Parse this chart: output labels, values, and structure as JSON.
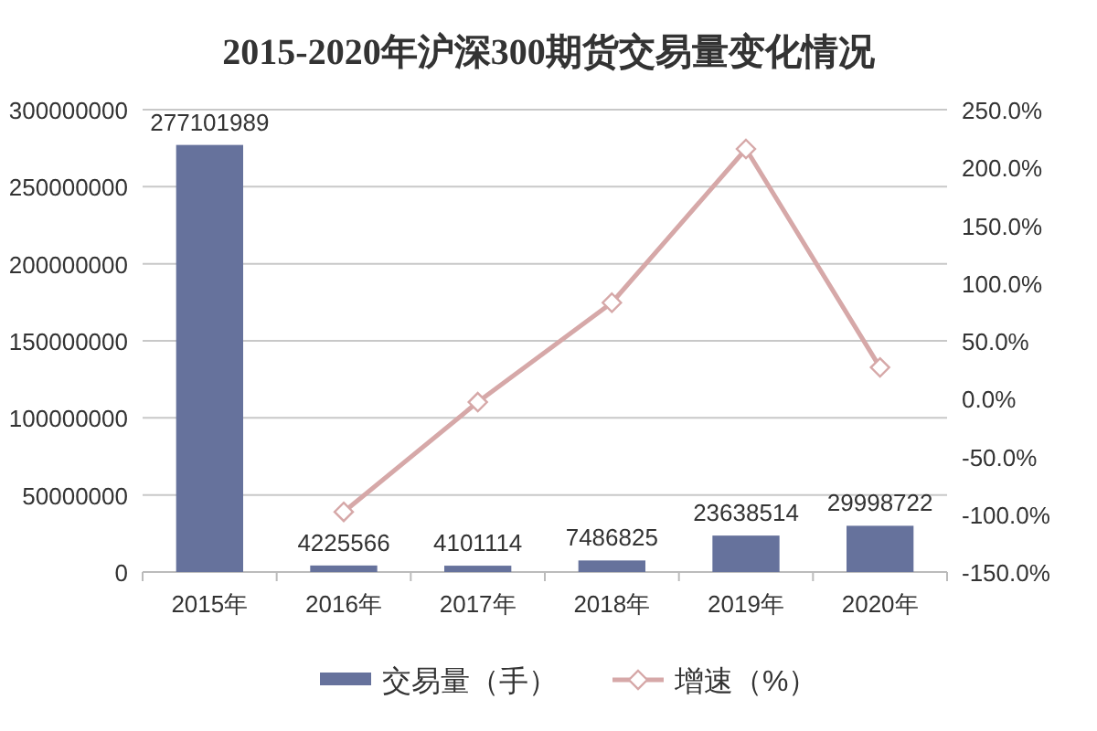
{
  "chart_data": {
    "type": "bar",
    "title": "2015-2020年沪深300期货交易量变化情况",
    "categories": [
      "2015年",
      "2016年",
      "2017年",
      "2018年",
      "2019年",
      "2020年"
    ],
    "series": [
      {
        "name": "交易量（手）",
        "color": "#66729c",
        "values": [
          277101989,
          4225566,
          4101114,
          7486825,
          23638514,
          29998722
        ],
        "value_labels": [
          "277101989",
          "4225566",
          "4101114",
          "7486825",
          "23638514",
          "29998722"
        ]
      },
      {
        "name": "增速（%）",
        "type": "line",
        "axis": "y2",
        "color": "#d6a8a8",
        "marker": "diamond",
        "values": [
          null,
          -98,
          -3,
          83,
          216,
          27
        ]
      }
    ],
    "ylim": [
      0,
      300000000
    ],
    "yticks": [
      0,
      50000000,
      100000000,
      150000000,
      200000000,
      250000000,
      300000000
    ],
    "y2lim": [
      -150,
      250
    ],
    "y2ticks": [
      {
        "value": -150,
        "label": "-150.0%"
      },
      {
        "value": -100,
        "label": "-100.0%"
      },
      {
        "value": -50,
        "label": "-50.0%"
      },
      {
        "value": 0,
        "label": "0.0%"
      },
      {
        "value": 50,
        "label": "50.0%"
      },
      {
        "value": 100,
        "label": "100.0%"
      },
      {
        "value": 150,
        "label": "150.0%"
      },
      {
        "value": 200,
        "label": "200.0%"
      },
      {
        "value": 250,
        "label": "250.0%"
      }
    ],
    "grid": "y",
    "legend": "bottom"
  }
}
